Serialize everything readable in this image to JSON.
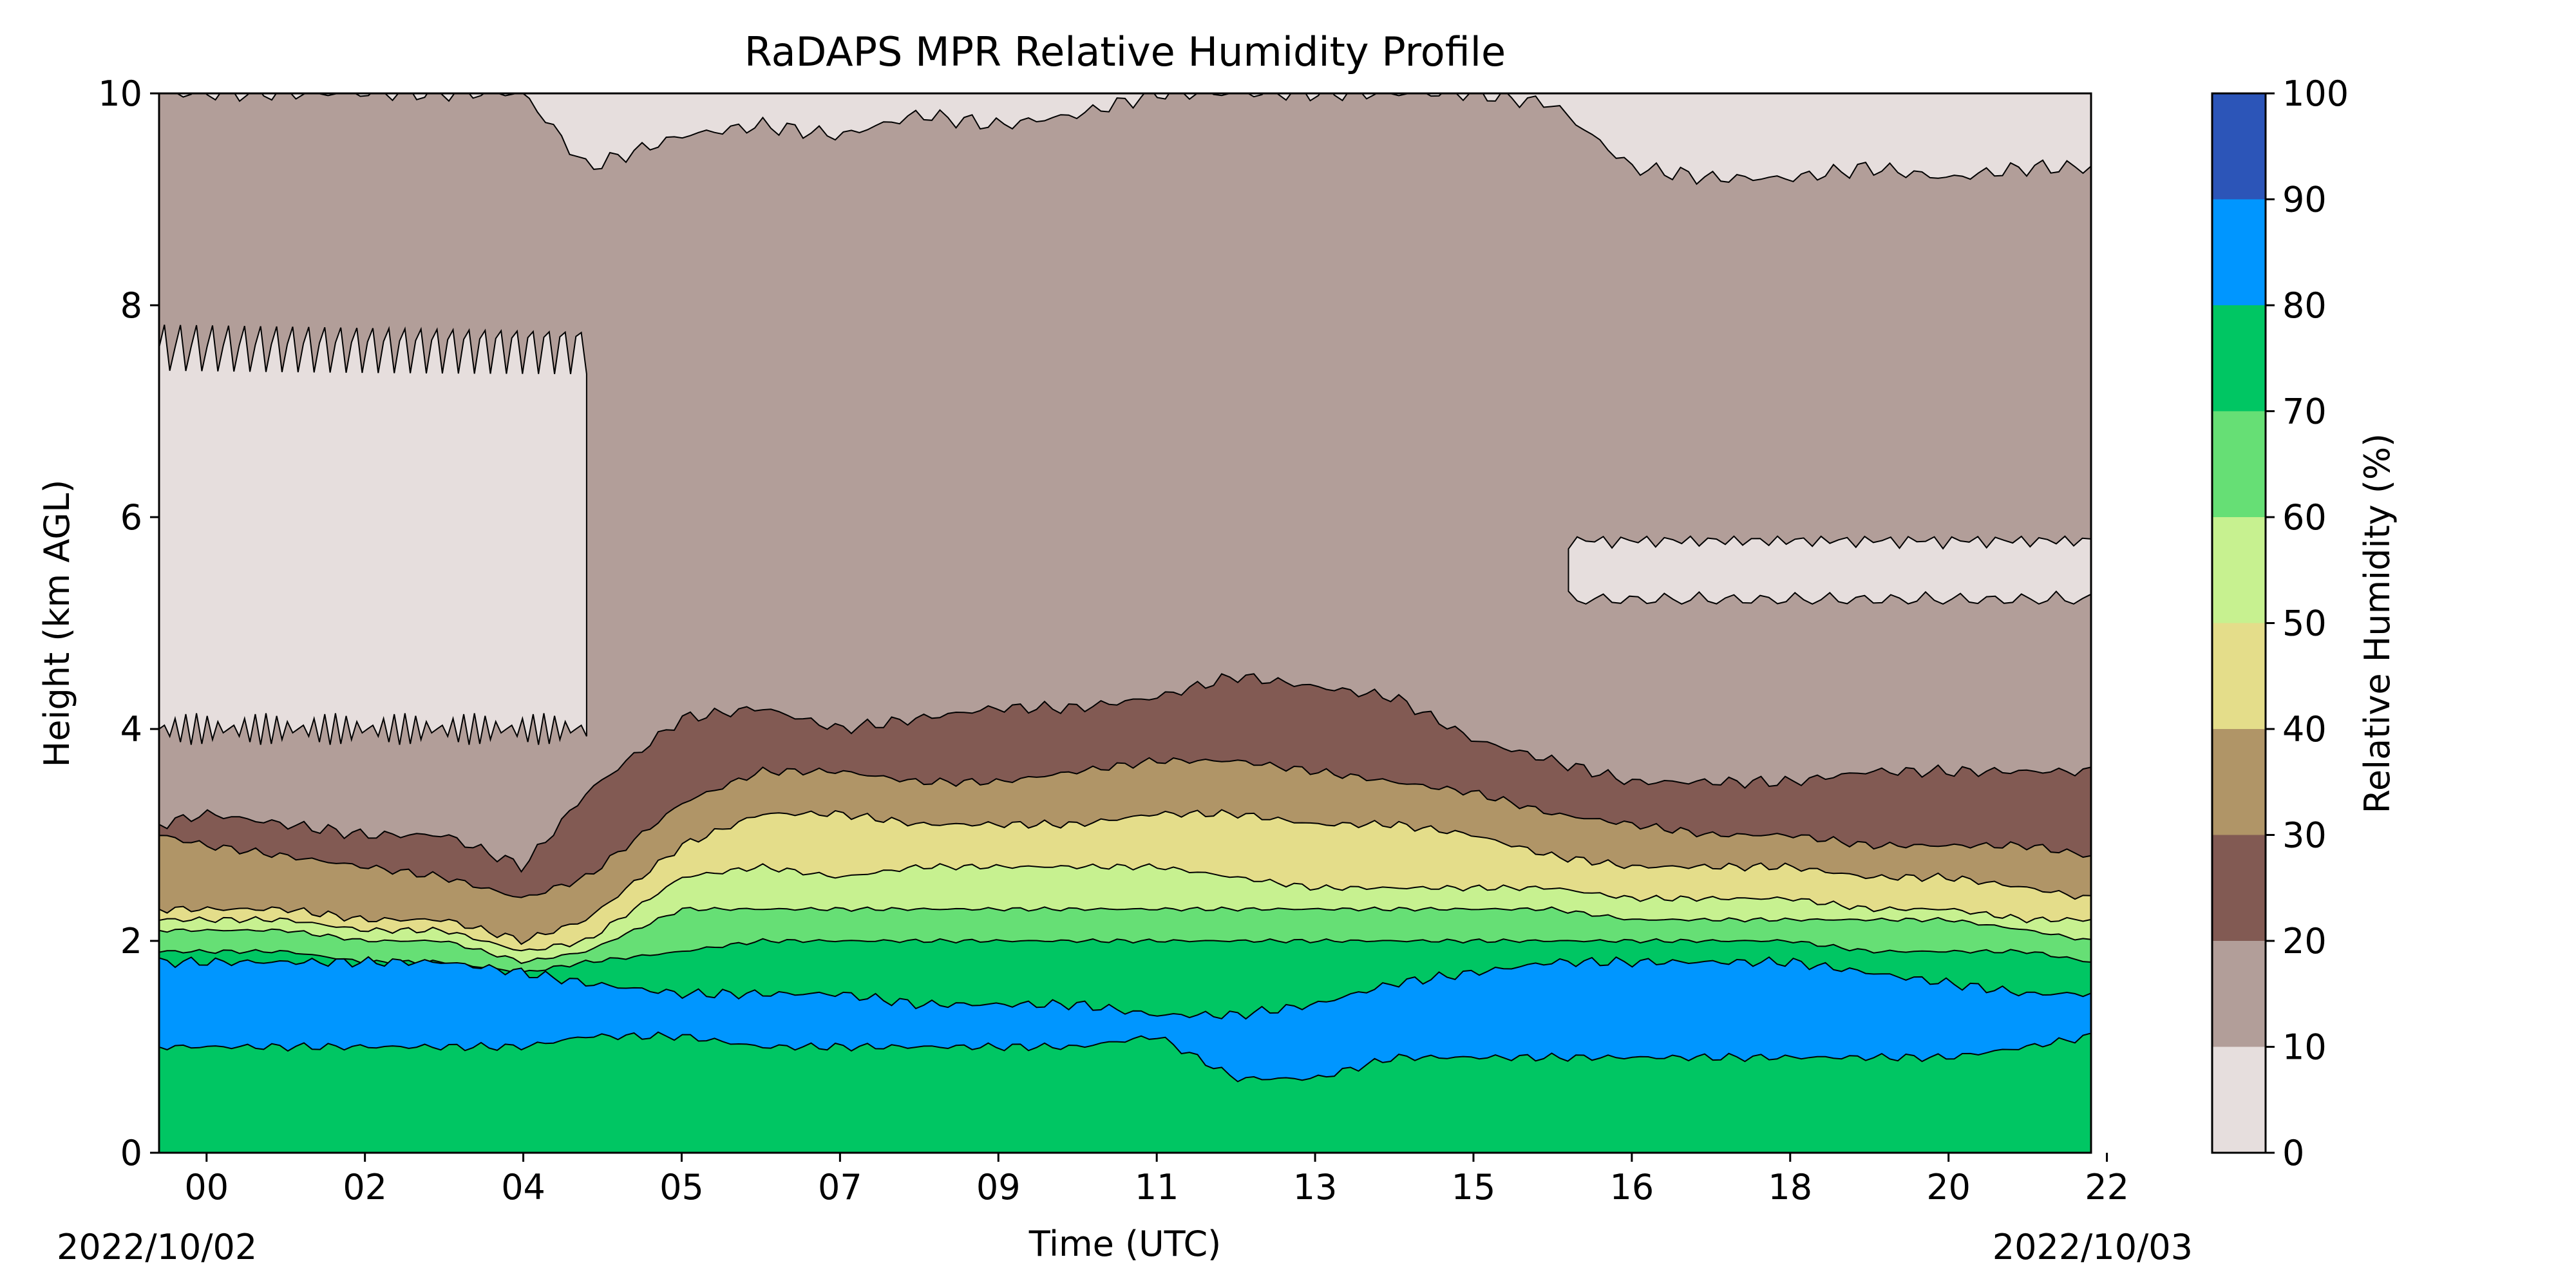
{
  "chart_data": {
    "type": "contour",
    "title": "RaDAPS MPR Relative Humidity Profile",
    "xlabel": "Time (UTC)",
    "ylabel": "Height (km AGL)",
    "colorbar_label": "Relative Humidity (%)",
    "ylim": [
      0,
      10
    ],
    "yticks": [
      0,
      2,
      4,
      6,
      8,
      10
    ],
    "xlim_hours": [
      -0.6,
      23.8
    ],
    "xticks": [
      {
        "hour": 0,
        "label": "00"
      },
      {
        "hour": 2,
        "label": "02"
      },
      {
        "hour": 4,
        "label": "04"
      },
      {
        "hour": 6,
        "label": "05"
      },
      {
        "hour": 8,
        "label": "07"
      },
      {
        "hour": 10,
        "label": "09"
      },
      {
        "hour": 12,
        "label": "11"
      },
      {
        "hour": 14,
        "label": "13"
      },
      {
        "hour": 16,
        "label": "15"
      },
      {
        "hour": 18,
        "label": "16"
      },
      {
        "hour": 20,
        "label": "18"
      },
      {
        "hour": 22,
        "label": "20"
      },
      {
        "hour": 24,
        "label": "22"
      }
    ],
    "date_start": "2022/10/02",
    "date_end": "2022/10/03",
    "levels": [
      0,
      10,
      20,
      30,
      40,
      50,
      60,
      70,
      80,
      90,
      100
    ],
    "level_colors": [
      "#e6dedd",
      "#b29e99",
      "#825a53",
      "#b09567",
      "#e4dd8a",
      "#c7f190",
      "#66df75",
      "#00c663",
      "#0096ff",
      "#2c55b8"
    ],
    "boundary_heights_km": {
      "hours": [
        -0.6,
        0,
        1,
        2,
        3,
        4,
        4.8,
        6,
        7,
        8,
        9,
        10,
        11,
        12,
        13,
        14,
        15,
        16,
        17,
        18,
        19,
        20,
        21,
        22,
        23,
        23.8
      ],
      "rh10": [
        10,
        10,
        10,
        10,
        10,
        10,
        9.3,
        9.6,
        9.7,
        9.6,
        9.8,
        9.7,
        9.8,
        10,
        10,
        10,
        10,
        10,
        9.9,
        9.3,
        9.2,
        9.2,
        9.3,
        9.2,
        9.3,
        9.3
      ],
      "rh20": [
        3.1,
        3.2,
        3.1,
        3.0,
        3.0,
        2.7,
        3.4,
        4.1,
        4.2,
        4.0,
        4.1,
        4.2,
        4.2,
        4.3,
        4.5,
        4.4,
        4.3,
        3.9,
        3.7,
        3.5,
        3.5,
        3.5,
        3.6,
        3.6,
        3.6,
        3.6
      ],
      "rh30": [
        3.0,
        2.9,
        2.8,
        2.7,
        2.6,
        2.4,
        2.6,
        3.3,
        3.6,
        3.6,
        3.5,
        3.5,
        3.6,
        3.7,
        3.7,
        3.6,
        3.5,
        3.4,
        3.2,
        3.1,
        3.0,
        3.0,
        2.9,
        2.9,
        2.9,
        2.8
      ],
      "rh40": [
        2.3,
        2.3,
        2.3,
        2.2,
        2.2,
        2.0,
        2.2,
        2.9,
        3.2,
        3.2,
        3.1,
        3.1,
        3.1,
        3.2,
        3.2,
        3.1,
        3.1,
        3.0,
        2.8,
        2.7,
        2.7,
        2.7,
        2.6,
        2.6,
        2.5,
        2.4
      ],
      "rh50": [
        2.2,
        2.2,
        2.2,
        2.1,
        2.1,
        1.9,
        2.0,
        2.6,
        2.7,
        2.6,
        2.7,
        2.7,
        2.7,
        2.7,
        2.6,
        2.5,
        2.5,
        2.5,
        2.5,
        2.4,
        2.4,
        2.4,
        2.3,
        2.3,
        2.2,
        2.2
      ],
      "rh60": [
        2.1,
        2.1,
        2.1,
        2.0,
        2.0,
        1.8,
        1.9,
        2.3,
        2.3,
        2.3,
        2.3,
        2.3,
        2.3,
        2.3,
        2.3,
        2.3,
        2.3,
        2.3,
        2.3,
        2.2,
        2.2,
        2.2,
        2.2,
        2.2,
        2.1,
        2.0
      ],
      "rh70": [
        1.9,
        1.9,
        1.9,
        1.8,
        1.8,
        1.7,
        1.8,
        1.9,
        2.0,
        2.0,
        2.0,
        2.0,
        2.0,
        2.0,
        2.0,
        2.0,
        2.0,
        2.0,
        2.0,
        2.0,
        2.0,
        2.0,
        1.9,
        1.9,
        1.9,
        1.8
      ]
    },
    "humid_band_km": {
      "hours": [
        -0.6,
        0,
        1,
        2,
        3,
        4,
        4.8,
        6,
        7,
        8,
        9,
        10,
        11,
        12,
        13,
        14,
        15,
        16,
        17,
        18,
        19,
        20,
        21,
        22,
        23,
        23.8
      ],
      "rh80_top": [
        1.8,
        1.8,
        1.8,
        1.8,
        1.8,
        1.7,
        1.6,
        1.5,
        1.5,
        1.5,
        1.4,
        1.4,
        1.4,
        1.3,
        1.3,
        1.4,
        1.6,
        1.7,
        1.8,
        1.8,
        1.8,
        1.8,
        1.7,
        1.6,
        1.5,
        1.5
      ],
      "rh80_bottom": [
        1.0,
        1.0,
        1.0,
        1.0,
        1.0,
        1.0,
        1.1,
        1.1,
        1.0,
        1.0,
        1.0,
        1.0,
        1.0,
        1.1,
        0.7,
        0.7,
        0.9,
        0.9,
        0.9,
        0.9,
        0.9,
        0.9,
        0.9,
        0.9,
        1.0,
        1.1
      ]
    },
    "dry_region_upper_km": {
      "hour_start": -0.6,
      "hour_end": 4.8,
      "bottom": 4.0,
      "top": 7.6
    },
    "dry_region_right_km": {
      "hour_start": 17.2,
      "hour_end": 23.8,
      "center": 5.5,
      "thickness": 0.4
    }
  }
}
